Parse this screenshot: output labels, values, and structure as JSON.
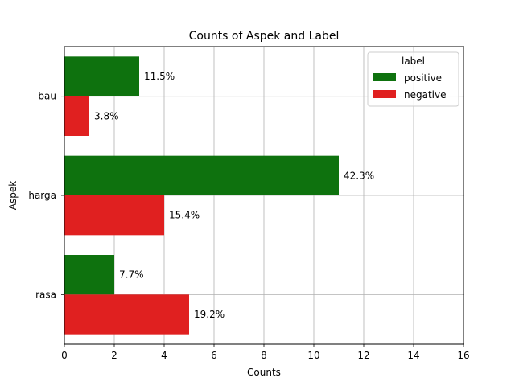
{
  "chart_data": {
    "type": "bar",
    "orientation": "horizontal",
    "title": "Counts of Aspek and Label",
    "xlabel": "Counts",
    "ylabel": "Aspek",
    "categories": [
      "bau",
      "harga",
      "rasa"
    ],
    "series": [
      {
        "name": "positive",
        "color": "#0e720e",
        "values": [
          3,
          11,
          2
        ],
        "labels": [
          "11.5%",
          "42.3%",
          "7.7%"
        ]
      },
      {
        "name": "negative",
        "color": "#e02020",
        "values": [
          1,
          4,
          5
        ],
        "labels": [
          "3.8%",
          "15.4%",
          "19.2%"
        ]
      }
    ],
    "xlim": [
      0,
      16
    ],
    "xticks": [
      0,
      2,
      4,
      6,
      8,
      10,
      12,
      14,
      16
    ],
    "grid": true,
    "legend": {
      "title": "label",
      "position": "top-right"
    }
  }
}
